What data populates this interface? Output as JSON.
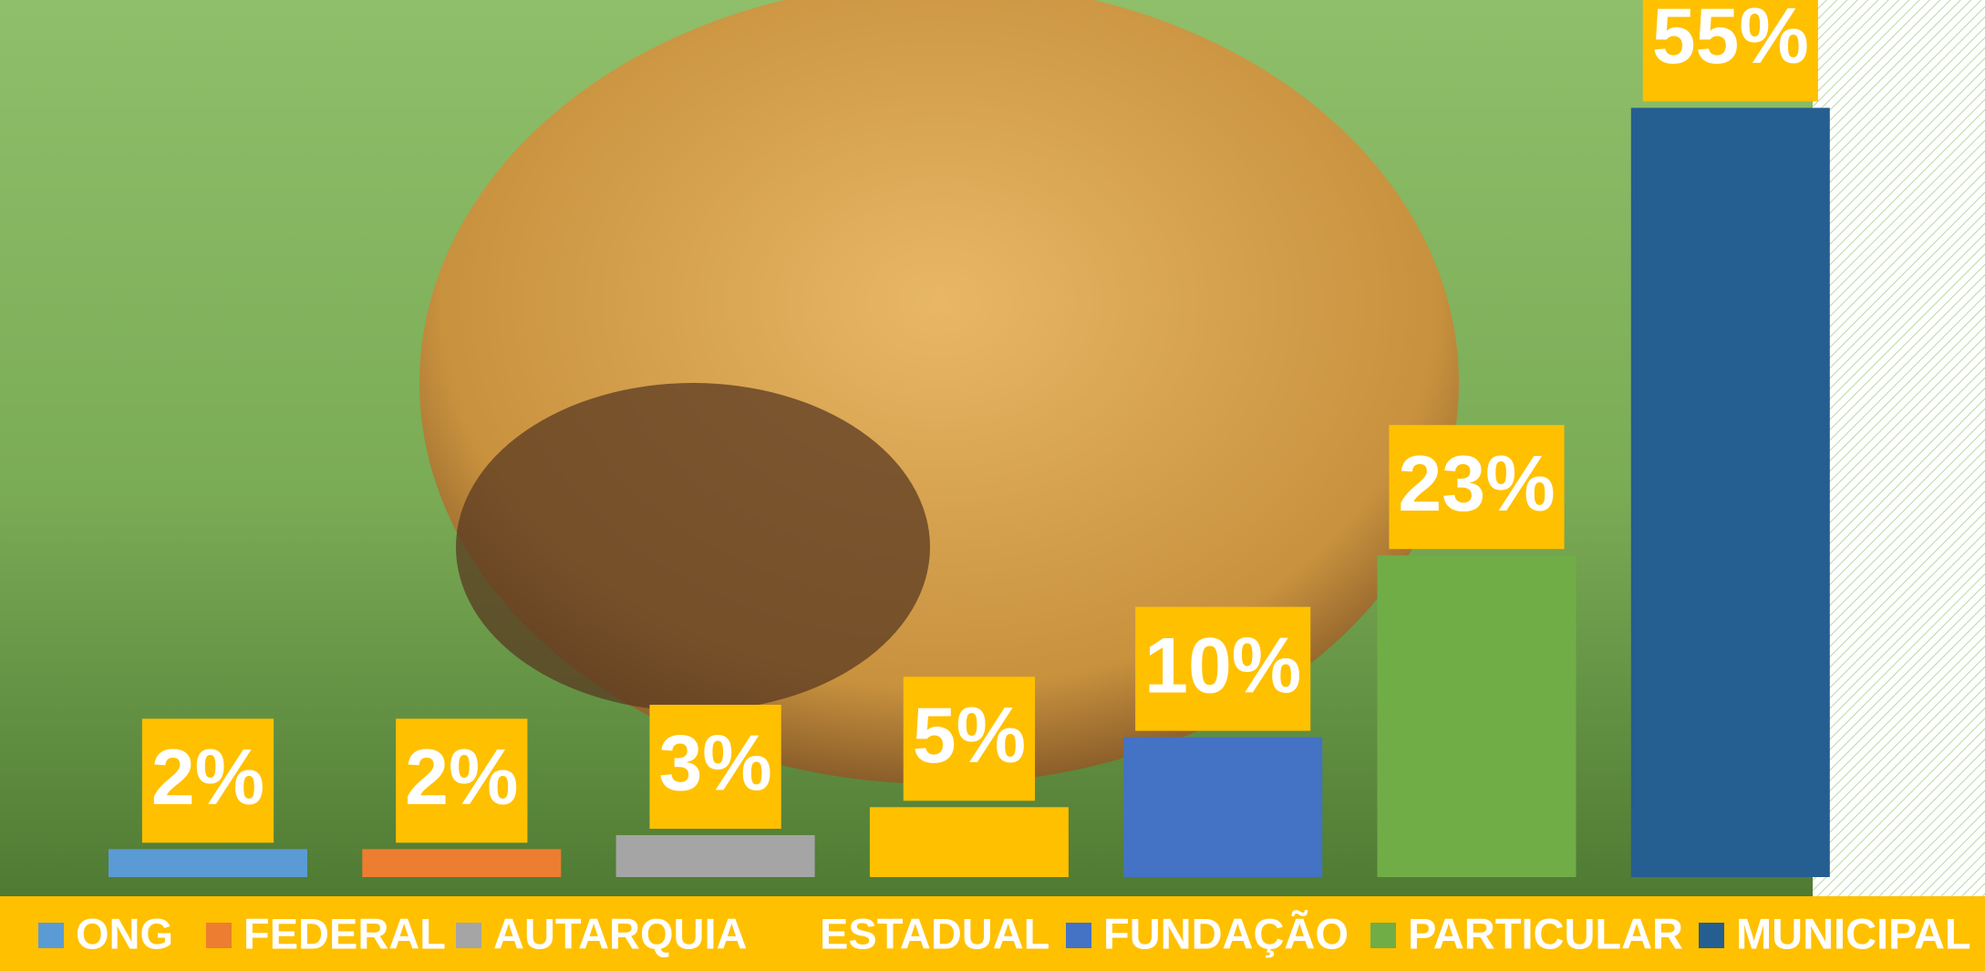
{
  "chart_data": {
    "type": "bar",
    "categories": [
      "ONG",
      "FEDERAL",
      "AUTARQUIA",
      "ESTADUAL",
      "FUNDAÇÃO",
      "PARTICULAR",
      "MUNICIPAL"
    ],
    "values": [
      2,
      2,
      3,
      5,
      10,
      23,
      55
    ],
    "value_labels": [
      "2%",
      "2%",
      "3%",
      "5%",
      "10%",
      "23%",
      "55%"
    ],
    "colors": [
      "#5b9bd5",
      "#ed7d31",
      "#a5a5a5",
      "#ffc000",
      "#4472c4",
      "#70ad47",
      "#255e91"
    ],
    "legend": "bottom"
  }
}
